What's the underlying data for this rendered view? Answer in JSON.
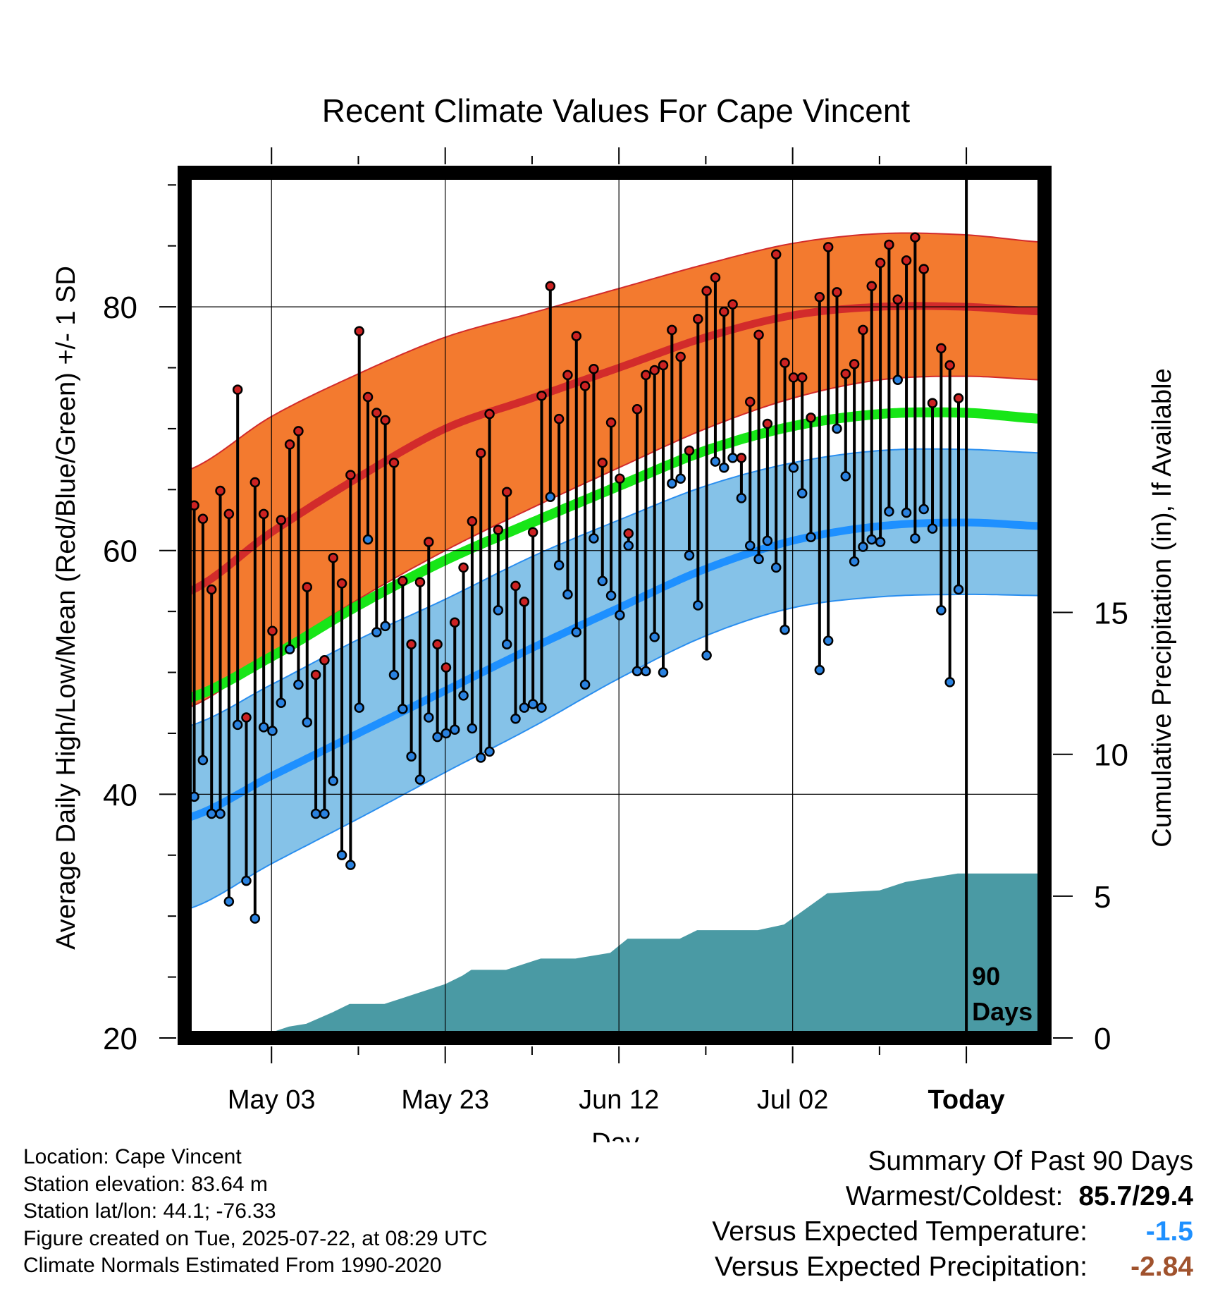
{
  "chart_data": {
    "type": "line",
    "title": "Recent Climate Values For Cape Vincent",
    "xlabel": "Day",
    "ylabel": "Average Daily High/Low/Mean (Red/Blue/Green) +/- 1 SD",
    "y2label": "Cumulative Precipitation (in), If Available",
    "xticks": [
      "May 03",
      "May 23",
      "Jun 12",
      "Jul 02",
      "Today"
    ],
    "yticks": [
      "20",
      "40",
      "60",
      "80"
    ],
    "y2ticks": [
      "0",
      "5",
      "10",
      "15"
    ],
    "ylim": [
      20,
      91
    ],
    "y2lim": [
      0,
      30.5
    ],
    "x_range_days": [
      -90,
      9
    ],
    "x_tick_days": [
      -80,
      -60,
      -40,
      -20,
      0
    ],
    "today_label": "90 Days",
    "grid": true,
    "colors": {
      "high_band": "#f37a2f",
      "high_band_edge": "#d22b2b",
      "high_normal": "#d22b2b",
      "mean_normal": "#17e617",
      "low_band": "#85c2e8",
      "low_band_edge": "#2a8eef",
      "low_normal": "#1e90ff",
      "high_dot": "#cc2222",
      "low_dot": "#2a82e0",
      "precip": "#4a9aa4"
    },
    "normals": {
      "days": [
        -90,
        -80,
        -70,
        -60,
        -50,
        -40,
        -30,
        -20,
        -10,
        0,
        9
      ],
      "high_mean": [
        56.5,
        61.5,
        66,
        70,
        72.5,
        75,
        77.5,
        79.3,
        80,
        80,
        79.6
      ],
      "high_upper": [
        66.5,
        71,
        74.5,
        77.5,
        79.5,
        81.5,
        83.5,
        85.2,
        86,
        85.9,
        85.3
      ],
      "high_lower": [
        47,
        51.5,
        56,
        60,
        63.5,
        66.8,
        70,
        72.5,
        74,
        74.3,
        74
      ],
      "mean_normal": [
        47.8,
        51.3,
        55.5,
        59.2,
        62.3,
        65.3,
        68.2,
        70.2,
        71.2,
        71.3,
        70.8
      ],
      "low_mean": [
        38,
        41.5,
        45,
        48.5,
        52,
        55.3,
        58.5,
        60.8,
        62,
        62.3,
        62
      ],
      "low_upper": [
        45.5,
        49,
        52.7,
        56,
        59.5,
        62.5,
        65.3,
        67.2,
        68.2,
        68.3,
        68
      ],
      "low_lower": [
        30.5,
        34.3,
        38,
        41.8,
        45.5,
        49.5,
        53,
        55.3,
        56.2,
        56.4,
        56.3
      ]
    },
    "series": [
      {
        "name": "High",
        "values": [
          55.9,
          63.7,
          62.6,
          56.8,
          64.9,
          63,
          73.2,
          46.3,
          65.6,
          63,
          53.4,
          62.5,
          68.7,
          69.8,
          57,
          49.8,
          51,
          59.4,
          57.3,
          66.2,
          78,
          72.6,
          71.3,
          70.7,
          67.2,
          57.5,
          52.3,
          57.4,
          60.7,
          52.3,
          50.4,
          54.1,
          58.6,
          62.4,
          68,
          71.2,
          61.7,
          64.8,
          57.1,
          55.8,
          61.5,
          72.7,
          81.7,
          70.8,
          74.4,
          77.6,
          73.5,
          74.9,
          67.2,
          70.5,
          65.9,
          61.4,
          71.6,
          74.4,
          74.8,
          75.2,
          78.1,
          75.9,
          68.2,
          79,
          81.3,
          82.4,
          79.6,
          80.2,
          67.6,
          72.2,
          77.7,
          70.4,
          84.3,
          75.4,
          74.2,
          74.2,
          70.9,
          80.8,
          84.9,
          81.2,
          74.5,
          75.3,
          78.1,
          81.7,
          83.6,
          85.1,
          80.6,
          83.8,
          85.7,
          83.1,
          72.1,
          76.6,
          75.2,
          72.5
        ]
      },
      {
        "name": "Low",
        "values": [
          29.4,
          39.8,
          42.8,
          38.4,
          38.4,
          31.2,
          45.7,
          32.9,
          29.8,
          45.5,
          45.2,
          47.5,
          51.9,
          49,
          45.9,
          38.4,
          38.4,
          41.1,
          35,
          34.2,
          47.1,
          60.9,
          53.3,
          53.8,
          49.8,
          47,
          43.1,
          41.2,
          46.3,
          44.7,
          45,
          45.3,
          48.1,
          45.4,
          43,
          43.5,
          55.1,
          52.3,
          46.2,
          47.1,
          47.4,
          47.1,
          64.4,
          58.8,
          56.4,
          53.3,
          49,
          61,
          57.5,
          56.3,
          54.7,
          60.4,
          50.1,
          50.1,
          52.9,
          50,
          65.5,
          65.9,
          59.6,
          55.5,
          51.4,
          67.3,
          66.8,
          67.6,
          64.3,
          60.4,
          59.3,
          60.8,
          58.6,
          53.5,
          66.8,
          64.7,
          61.1,
          50.2,
          52.6,
          70,
          66.1,
          59.1,
          60.3,
          60.9,
          60.7,
          63.2,
          74,
          63.1,
          61,
          63.4,
          61.8,
          55.1,
          49.2,
          56.8
        ]
      }
    ],
    "precipitation": {
      "days": [
        -90,
        -82,
        -80,
        -78,
        -76,
        -73,
        -71,
        -67,
        -65,
        -62,
        -60,
        -58,
        -57,
        -53,
        -51,
        -49,
        -45,
        -41,
        -39,
        -33,
        -31,
        -24,
        -21,
        -16,
        -10,
        -7,
        -5,
        -1,
        9
      ],
      "values": [
        0,
        0,
        0.2,
        0.4,
        0.5,
        0.9,
        1.2,
        1.2,
        1.4,
        1.7,
        1.9,
        2.2,
        2.4,
        2.4,
        2.6,
        2.8,
        2.8,
        3,
        3.5,
        3.5,
        3.8,
        3.8,
        4,
        5.1,
        5.2,
        5.5,
        5.6,
        5.8,
        5.8
      ]
    },
    "legend": "none"
  },
  "info": {
    "location": "Location: Cape Vincent",
    "elevation": "Station elevation: 83.64 m",
    "latlon": "Station lat/lon: 44.1; -76.33",
    "created": "Figure created on Tue, 2025-07-22, at 08:29 UTC",
    "normals_period": "Climate Normals Estimated From 1990-2020"
  },
  "summary": {
    "heading": "Summary Of Past 90 Days",
    "warm_cold_label": "Warmest/Coldest:",
    "warm_cold_value": "85.7/29.4",
    "temp_label": "Versus Expected Temperature:",
    "temp_value": "-1.5",
    "temp_color": "#1e90ff",
    "precip_label": "Versus Expected Precipitation:",
    "precip_value": "-2.84",
    "precip_color": "#a0522d"
  }
}
